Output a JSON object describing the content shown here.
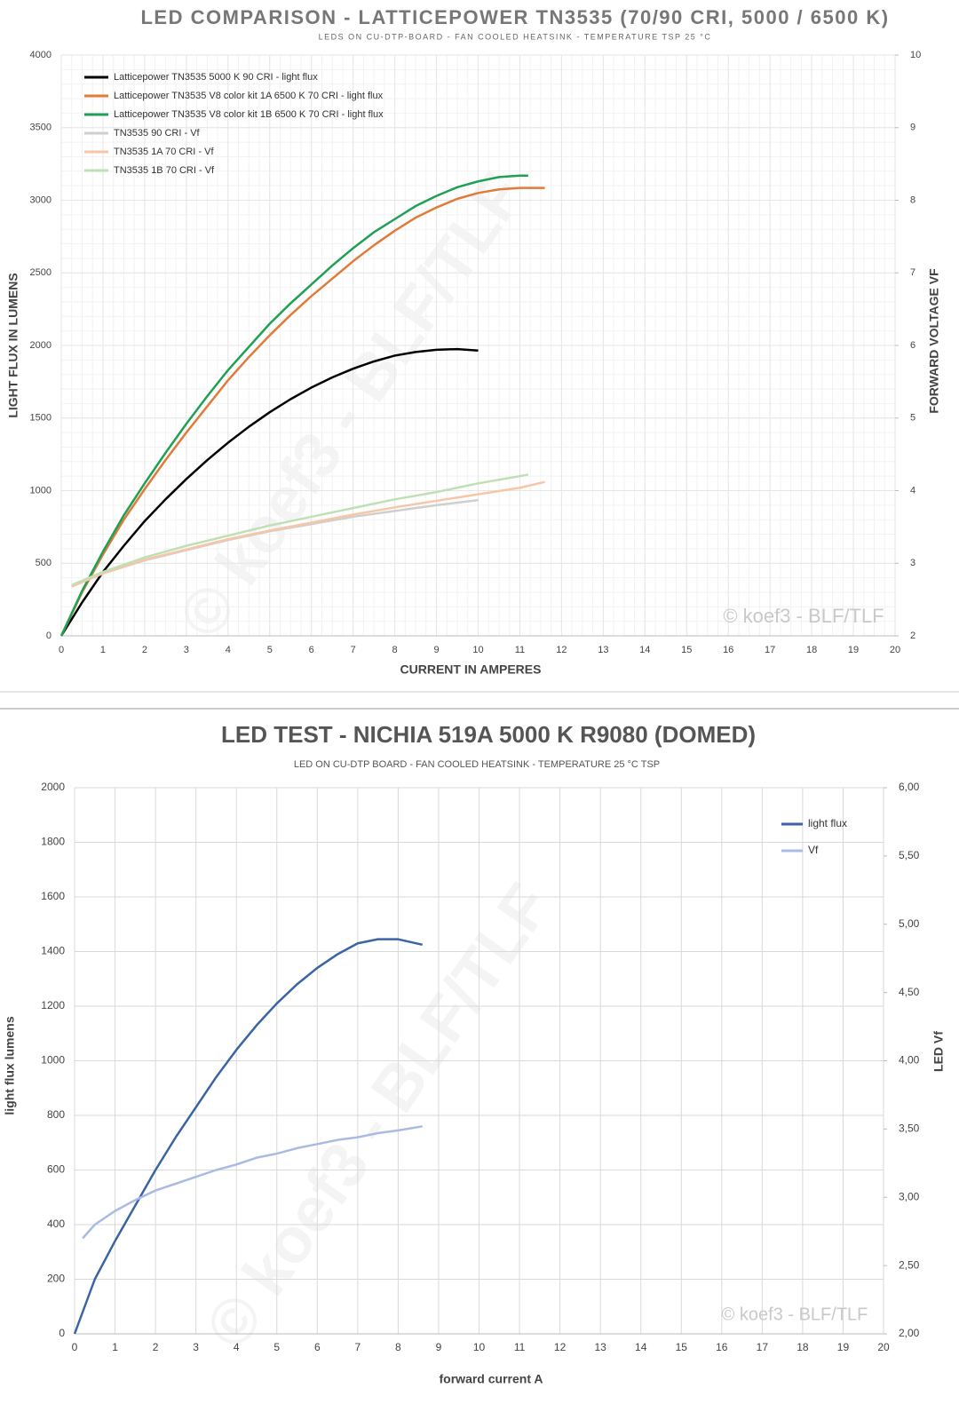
{
  "chart_data": [
    {
      "type": "line",
      "title": "LED COMPARISON -  LATTICEPOWER TN3535 (70/90 CRI, 5000 / 6500 K)",
      "subtitle": "LEDS ON CU-DTP-BOARD - FAN COOLED HEATSINK - TEMPERATURE TSP 25 °C",
      "x_label": "CURRENT IN AMPERES",
      "y_label": "LIGHT FLUX IN LUMENS",
      "y2_label": "FORWARD VOLTAGE VF",
      "watermark": "© koef3 - BLF/TLF",
      "xlim": [
        0,
        20
      ],
      "xticks": [
        0,
        1,
        2,
        3,
        4,
        5,
        6,
        7,
        8,
        9,
        10,
        11,
        12,
        13,
        14,
        15,
        16,
        17,
        18,
        19,
        20
      ],
      "ylim": [
        0,
        4000
      ],
      "yticks": [
        0,
        500,
        1000,
        1500,
        2000,
        2500,
        3000,
        3500,
        4000
      ],
      "y2lim": [
        2,
        10
      ],
      "y2ticks": [
        2,
        3,
        4,
        5,
        6,
        7,
        8,
        9,
        10
      ],
      "grid": true,
      "legend": "top-left",
      "series": [
        {
          "name": "Latticepower TN3535 5000 K 90 CRI - light flux",
          "color": "#000000",
          "x": [
            0,
            0.5,
            1,
            1.5,
            2,
            2.5,
            3,
            3.5,
            4,
            4.5,
            5,
            5.5,
            6,
            6.5,
            7,
            7.5,
            8,
            8.5,
            9,
            9.5,
            10
          ],
          "values": [
            0,
            230,
            440,
            620,
            790,
            940,
            1080,
            1210,
            1330,
            1440,
            1540,
            1630,
            1710,
            1780,
            1840,
            1890,
            1930,
            1955,
            1970,
            1975,
            1965
          ]
        },
        {
          "name": "Latticepower TN3535 V8 color kit 1A 6500 K 70 CRI - light flux",
          "color": "#e07b39",
          "x": [
            0,
            0.5,
            1,
            1.5,
            2,
            2.5,
            3,
            3.5,
            4,
            4.5,
            5,
            5.5,
            6,
            6.5,
            7,
            7.5,
            8,
            8.5,
            9,
            9.5,
            10,
            10.5,
            11,
            11.6
          ],
          "values": [
            0,
            300,
            560,
            800,
            1010,
            1210,
            1400,
            1580,
            1760,
            1920,
            2070,
            2210,
            2340,
            2460,
            2580,
            2690,
            2790,
            2880,
            2950,
            3010,
            3050,
            3075,
            3085,
            3085
          ]
        },
        {
          "name": "Latticepower TN3535 V8 color kit 1B 6500 K 70 CRI - light flux",
          "color": "#1fa055",
          "x": [
            0,
            0.5,
            1,
            1.5,
            2,
            2.5,
            3,
            3.5,
            4,
            4.5,
            5,
            5.5,
            6,
            6.5,
            7,
            7.5,
            8,
            8.5,
            9,
            9.5,
            10,
            10.5,
            11,
            11.2
          ],
          "values": [
            0,
            310,
            580,
            830,
            1050,
            1260,
            1460,
            1650,
            1830,
            1990,
            2150,
            2290,
            2420,
            2550,
            2670,
            2780,
            2870,
            2960,
            3030,
            3090,
            3130,
            3160,
            3170,
            3170
          ]
        },
        {
          "name": "TN3535 90 CRI - Vf",
          "color": "#cfcfcf",
          "axis": "y2",
          "x": [
            0.25,
            1,
            2,
            3,
            4,
            5,
            6,
            7,
            8,
            9,
            10
          ],
          "values": [
            2.68,
            2.86,
            3.04,
            3.18,
            3.32,
            3.44,
            3.54,
            3.64,
            3.72,
            3.8,
            3.87
          ]
        },
        {
          "name": "TN3535 1A 70 CRI - Vf",
          "color": "#f6c6a6",
          "axis": "y2",
          "x": [
            0.25,
            1,
            2,
            3,
            4,
            5,
            6,
            7,
            8,
            9,
            10,
            11,
            11.6
          ],
          "values": [
            2.68,
            2.86,
            3.05,
            3.19,
            3.33,
            3.45,
            3.56,
            3.67,
            3.77,
            3.86,
            3.95,
            4.04,
            4.12
          ]
        },
        {
          "name": "TN3535 1B 70 CRI - Vf",
          "color": "#bfe0b4",
          "axis": "y2",
          "x": [
            0.25,
            1,
            2,
            3,
            4,
            5,
            6,
            7,
            8,
            9,
            10,
            11,
            11.2
          ],
          "values": [
            2.7,
            2.88,
            3.08,
            3.24,
            3.38,
            3.52,
            3.64,
            3.76,
            3.88,
            3.98,
            4.1,
            4.2,
            4.22
          ]
        }
      ]
    },
    {
      "type": "line",
      "title": "LED TEST -    NICHIA 519A 5000 K R9080 (DOMED)",
      "subtitle": "LED ON CU-DTP BOARD - FAN COOLED HEATSINK - TEMPERATURE 25 °C TSP",
      "x_label": "forward current A",
      "y_label": "light flux lumens",
      "y2_label": "LED Vf",
      "watermark": "© koef3 - BLF/TLF",
      "xlim": [
        0,
        20
      ],
      "xticks": [
        0,
        1,
        2,
        3,
        4,
        5,
        6,
        7,
        8,
        9,
        10,
        11,
        12,
        13,
        14,
        15,
        16,
        17,
        18,
        19,
        20
      ],
      "ylim": [
        0,
        2000
      ],
      "yticks": [
        0,
        200,
        400,
        600,
        800,
        1000,
        1200,
        1400,
        1600,
        1800,
        2000
      ],
      "y2lim": [
        2,
        6
      ],
      "y2ticks": [
        {
          "value": 2,
          "label": "2,00"
        },
        {
          "value": 2.5,
          "label": "2,50"
        },
        {
          "value": 3,
          "label": "3,00"
        },
        {
          "value": 3.5,
          "label": "3,50"
        },
        {
          "value": 4,
          "label": "4,00"
        },
        {
          "value": 4.5,
          "label": "4,50"
        },
        {
          "value": 5,
          "label": "5,00"
        },
        {
          "value": 5.5,
          "label": "5,50"
        },
        {
          "value": 6,
          "label": "6,00"
        }
      ],
      "grid": true,
      "legend": "top-right",
      "series": [
        {
          "name": "light flux",
          "color": "#3a64a4",
          "x": [
            0,
            0.5,
            1,
            1.5,
            2,
            2.5,
            3,
            3.5,
            4,
            4.5,
            5,
            5.5,
            6,
            6.5,
            7,
            7.5,
            8,
            8.6
          ],
          "values": [
            0,
            200,
            340,
            470,
            600,
            720,
            830,
            940,
            1040,
            1130,
            1210,
            1280,
            1340,
            1390,
            1430,
            1445,
            1445,
            1425
          ]
        },
        {
          "name": "Vf",
          "color": "#a9bbe3",
          "axis": "y2",
          "x": [
            0.2,
            0.5,
            1,
            1.5,
            2,
            2.5,
            3,
            3.5,
            4,
            4.5,
            5,
            5.5,
            6,
            6.5,
            7,
            7.5,
            8,
            8.6
          ],
          "values": [
            2.7,
            2.8,
            2.9,
            2.98,
            3.05,
            3.1,
            3.15,
            3.2,
            3.24,
            3.29,
            3.32,
            3.36,
            3.39,
            3.42,
            3.44,
            3.47,
            3.49,
            3.52
          ]
        }
      ]
    }
  ]
}
